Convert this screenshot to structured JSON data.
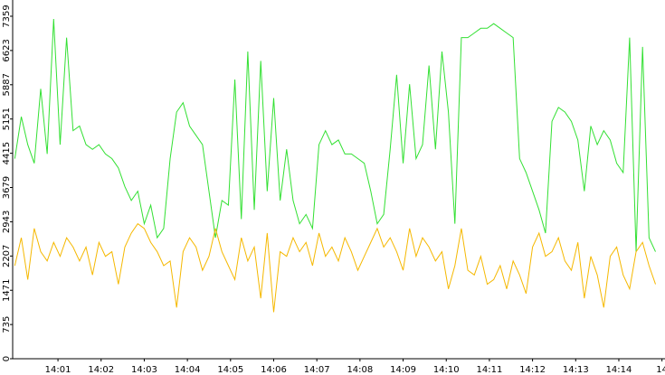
{
  "chart_data": {
    "type": "line",
    "xlim": [
      839.95,
      855.07
    ],
    "ylim": [
      0,
      7708
    ],
    "yticks": [
      0,
      735,
      1471,
      2207,
      2943,
      3679,
      4415,
      5151,
      5887,
      6623,
      7359
    ],
    "xticks": [
      {
        "value": 841,
        "label": "14:01"
      },
      {
        "value": 842,
        "label": "14:02"
      },
      {
        "value": 843,
        "label": "14:03"
      },
      {
        "value": 844,
        "label": "14:04"
      },
      {
        "value": 845,
        "label": "14:05"
      },
      {
        "value": 846,
        "label": "14:06"
      },
      {
        "value": 847,
        "label": "14:07"
      },
      {
        "value": 848,
        "label": "14:08"
      },
      {
        "value": 849,
        "label": "14:09"
      },
      {
        "value": 850,
        "label": "14:10"
      },
      {
        "value": 851,
        "label": "14:11"
      },
      {
        "value": 852,
        "label": "14:12"
      },
      {
        "value": 853,
        "label": "14:13"
      },
      {
        "value": 854,
        "label": "14:14"
      },
      {
        "value": 855,
        "label": "14"
      }
    ],
    "x": [
      840.0,
      840.15,
      840.3,
      840.45,
      840.6,
      840.75,
      840.9,
      841.05,
      841.2,
      841.35,
      841.5,
      841.65,
      841.8,
      841.95,
      842.1,
      842.25,
      842.4,
      842.55,
      842.7,
      842.85,
      843.0,
      843.15,
      843.3,
      843.45,
      843.6,
      843.75,
      843.9,
      844.05,
      844.2,
      844.35,
      844.5,
      844.65,
      844.8,
      844.95,
      845.1,
      845.25,
      845.4,
      845.55,
      845.7,
      845.85,
      846.0,
      846.15,
      846.3,
      846.45,
      846.6,
      846.75,
      846.9,
      847.05,
      847.2,
      847.35,
      847.5,
      847.65,
      847.8,
      847.95,
      848.1,
      848.25,
      848.4,
      848.55,
      848.7,
      848.85,
      849.0,
      849.15,
      849.3,
      849.45,
      849.6,
      849.75,
      849.9,
      850.05,
      850.2,
      850.35,
      850.5,
      850.65,
      850.8,
      850.95,
      851.1,
      851.25,
      851.4,
      851.55,
      851.7,
      851.85,
      852.0,
      852.15,
      852.3,
      852.45,
      852.6,
      852.75,
      852.9,
      853.05,
      853.2,
      853.35,
      853.5,
      853.65,
      853.8,
      853.95,
      854.1,
      854.25,
      854.4,
      854.55,
      854.7,
      854.85
    ],
    "series": [
      {
        "color": "#33e033",
        "values": [
          4300,
          5200,
          4600,
          4200,
          5800,
          4400,
          7300,
          4600,
          6900,
          4900,
          5000,
          4600,
          4500,
          4600,
          4400,
          4300,
          4100,
          3700,
          3400,
          3600,
          2900,
          3300,
          2600,
          2800,
          4300,
          5300,
          5500,
          5000,
          4800,
          4600,
          3600,
          2600,
          3400,
          3300,
          6000,
          3000,
          6600,
          3200,
          6400,
          3600,
          5600,
          3400,
          4500,
          3400,
          2900,
          3100,
          2800,
          4600,
          4900,
          4600,
          4700,
          4400,
          4400,
          4300,
          4200,
          3600,
          2900,
          3100,
          4500,
          6100,
          4200,
          5900,
          4300,
          4600,
          6300,
          4500,
          6600,
          5300,
          2900,
          6900,
          6900,
          7000,
          7100,
          7100,
          7200,
          7100,
          7000,
          6900,
          4300,
          4000,
          3600,
          3200,
          2700,
          5100,
          5400,
          5300,
          5100,
          4700,
          3600,
          5000,
          4600,
          4900,
          4700,
          4200,
          4000,
          6900,
          2300,
          6700,
          2600,
          2300
        ]
      },
      {
        "color": "#f5b800",
        "values": [
          2000,
          2600,
          1700,
          2800,
          2300,
          2100,
          2500,
          2200,
          2600,
          2400,
          2100,
          2400,
          1800,
          2500,
          2200,
          2300,
          1600,
          2400,
          2700,
          2900,
          2800,
          2500,
          2300,
          2000,
          2100,
          1100,
          2300,
          2600,
          2400,
          1900,
          2200,
          2800,
          2300,
          2000,
          1700,
          2600,
          2100,
          2400,
          1300,
          2700,
          1000,
          2300,
          2200,
          2600,
          2300,
          2500,
          2000,
          2700,
          2200,
          2400,
          2100,
          2600,
          2300,
          1900,
          2200,
          2500,
          2800,
          2400,
          2600,
          2300,
          1900,
          2800,
          2200,
          2600,
          2400,
          2100,
          2300,
          1500,
          2000,
          2800,
          1900,
          1800,
          2200,
          1600,
          1700,
          2000,
          1500,
          2100,
          1800,
          1400,
          2400,
          2700,
          2200,
          2300,
          2600,
          2100,
          1900,
          2500,
          1300,
          2200,
          1800,
          1100,
          2200,
          2400,
          1800,
          1500,
          2300,
          2500,
          2000,
          1600
        ]
      }
    ]
  }
}
